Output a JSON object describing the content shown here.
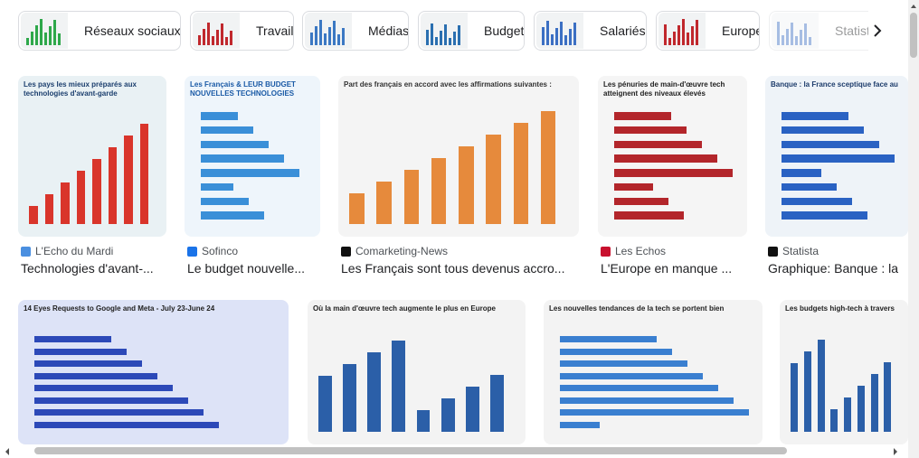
{
  "chips": [
    "Réseaux sociaux",
    "Travail",
    "Médias",
    "Budget",
    "Salariés",
    "Europe",
    "Statist"
  ],
  "results": [
    {
      "thumb_title": "Les pays les mieux préparés aux technologies d'avant-garde",
      "source": "L'Echo du Mardi",
      "title": "Technologies d'avant-..."
    },
    {
      "thumb_title": "Les Français & LEUR BUDGET NOUVELLES TECHNOLOGIES",
      "source": "Sofinco",
      "title": "Le budget nouvelle..."
    },
    {
      "thumb_title": "Part des français en accord avec les affirmations suivantes :",
      "source": "Comarketing-News",
      "title": "Les Français sont tous devenus accro..."
    },
    {
      "thumb_title": "Les pénuries de main-d'œuvre tech atteignent des niveaux élevés",
      "source": "Les Echos",
      "title": "L'Europe en manque ..."
    },
    {
      "thumb_title": "Banque : la France sceptique face au",
      "source": "Statista",
      "title": "Graphique: Banque : la"
    },
    {
      "thumb_title": "14 Eyes Requests to Google and Meta - July 23-June 24"
    },
    {
      "thumb_title": "Où la main d'œuvre tech augmente le plus en Europe"
    },
    {
      "thumb_title": "Les nouvelles tendances de la tech se portent bien"
    },
    {
      "thumb_title": "Les budgets high-tech à travers"
    }
  ]
}
